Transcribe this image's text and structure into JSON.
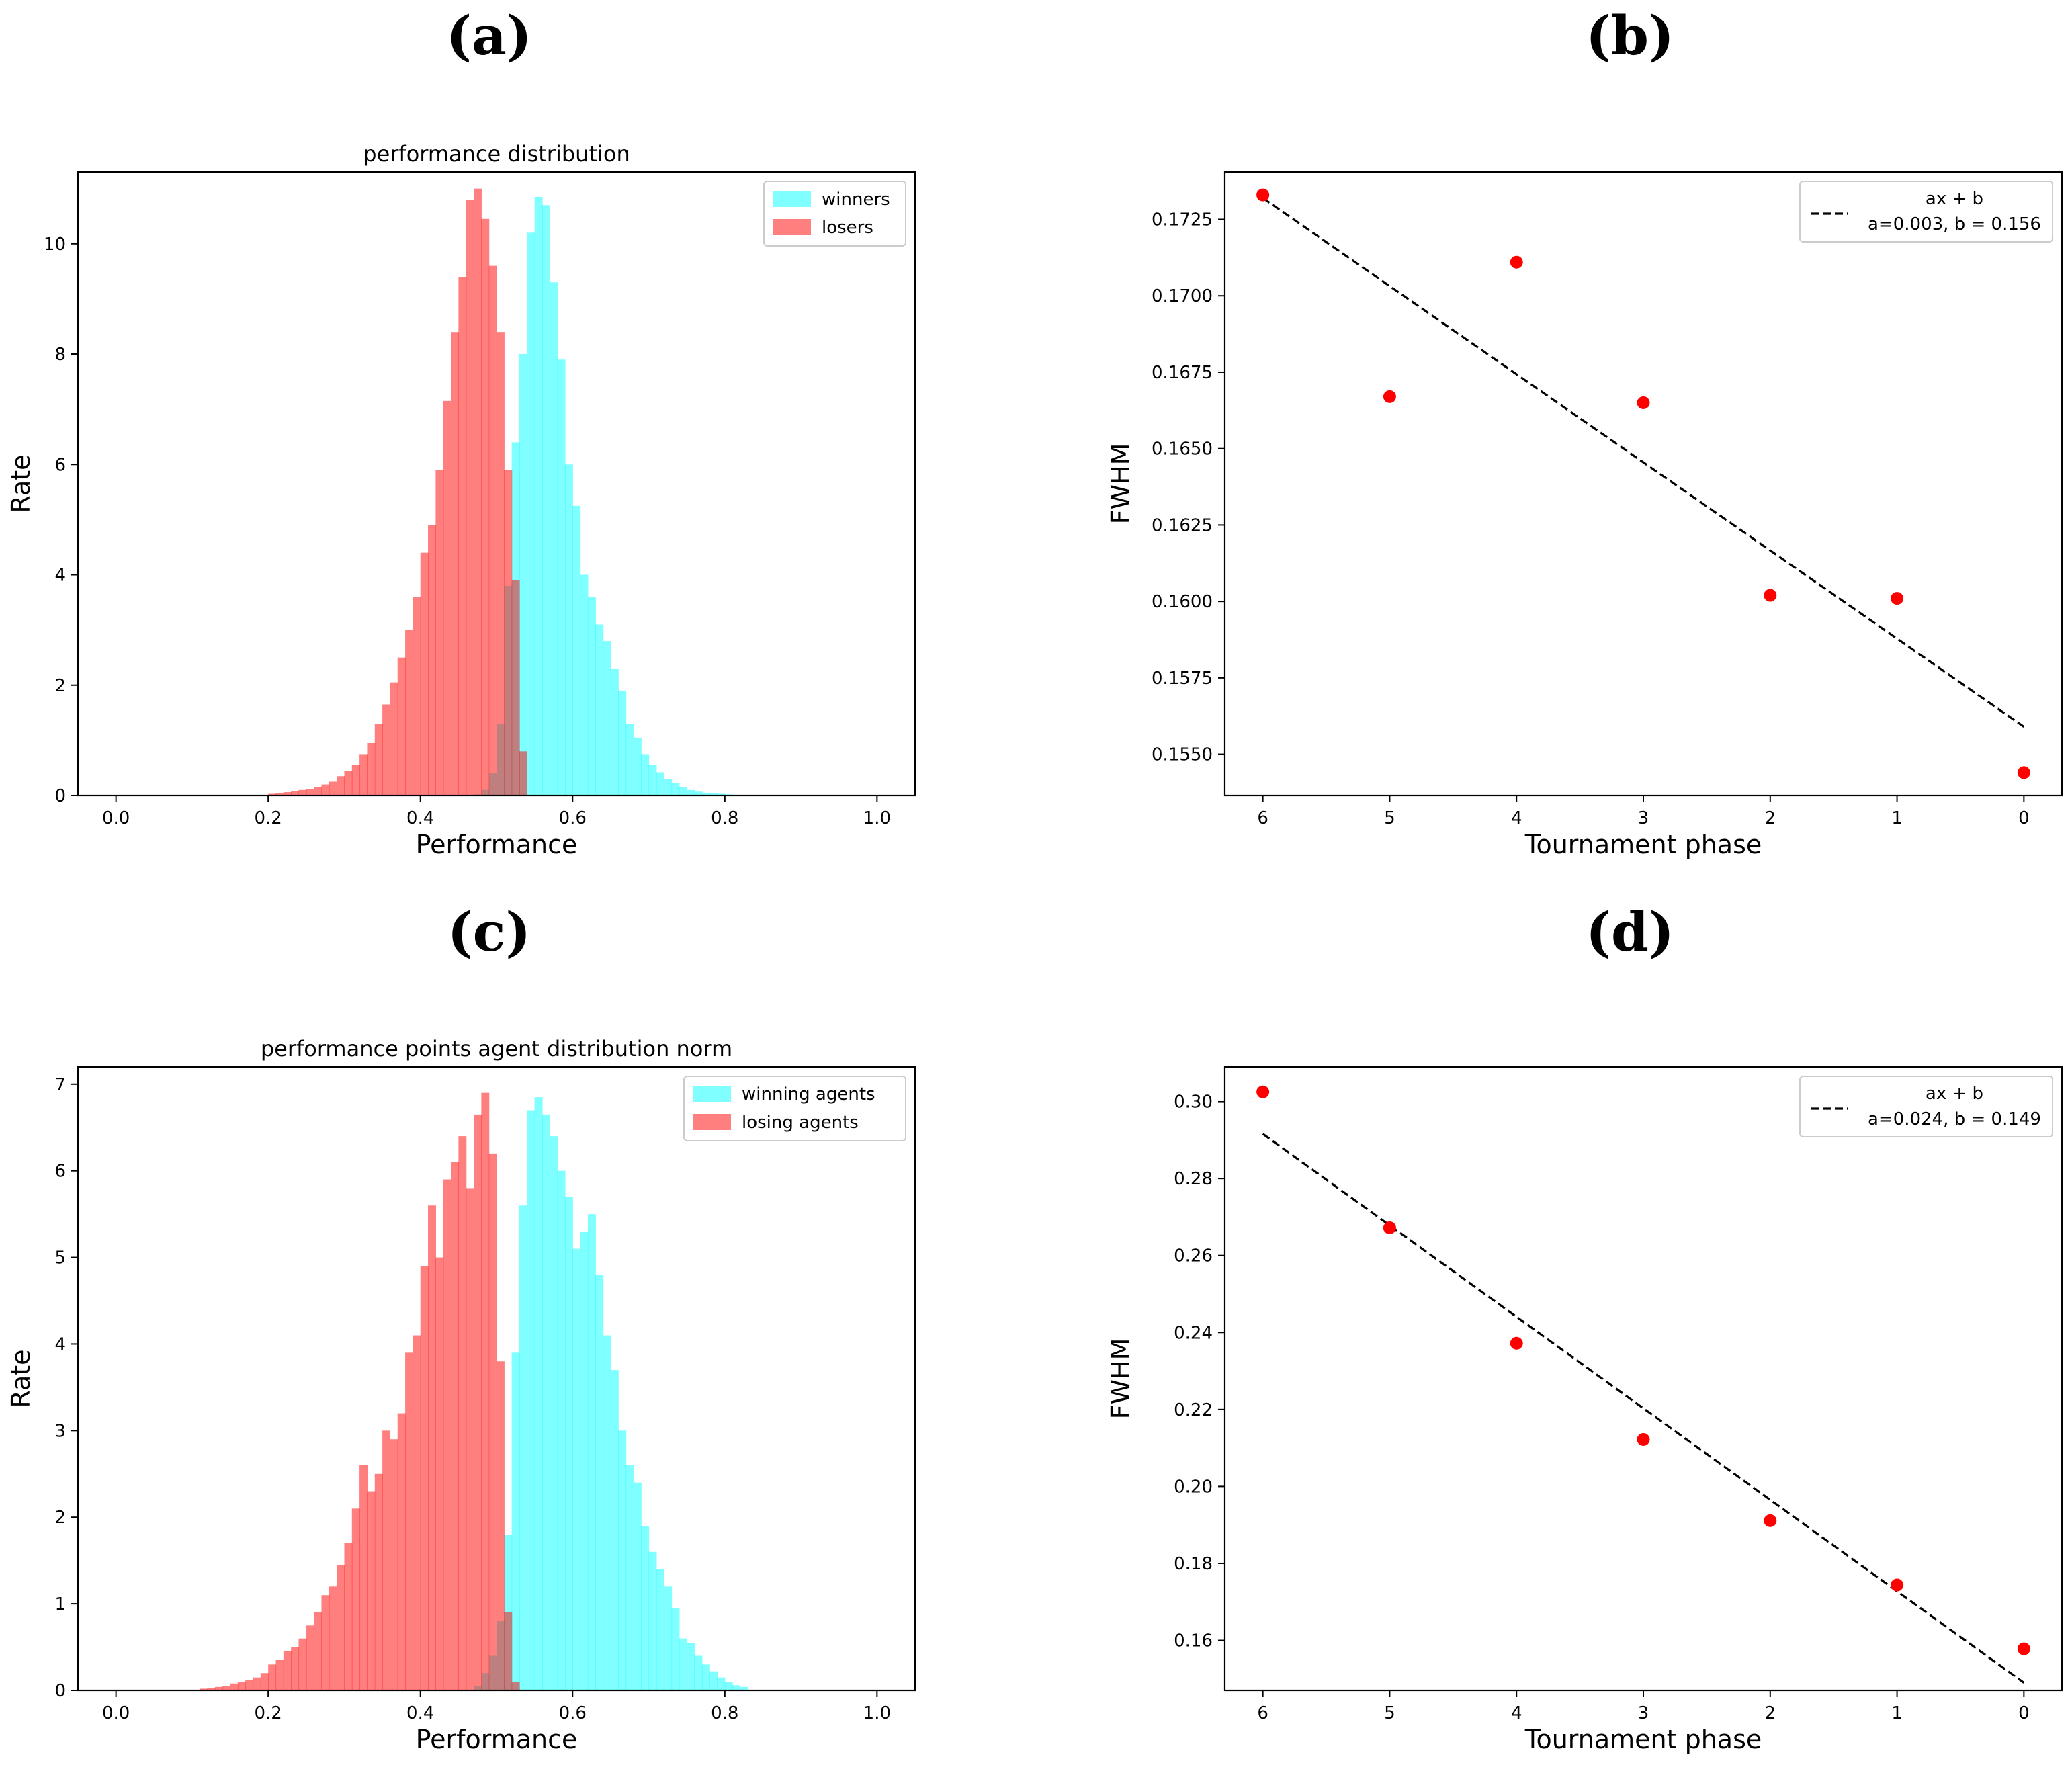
{
  "panel_labels": [
    "(a)",
    "(b)",
    "(c)",
    "(d)"
  ],
  "chart_data": [
    {
      "id": "a",
      "type": "bar",
      "title": "performance distribution",
      "xlabel": "Performance",
      "ylabel": "Rate",
      "xlim": [
        -0.05,
        1.05
      ],
      "ylim": [
        0,
        11.3
      ],
      "xticks": [
        0.0,
        0.2,
        0.4,
        0.6,
        0.8,
        1.0
      ],
      "xtick_labels": [
        "0.0",
        "0.2",
        "0.4",
        "0.6",
        "0.8",
        "1.0"
      ],
      "yticks": [
        0,
        2,
        4,
        6,
        8,
        10
      ],
      "ytick_labels": [
        "0",
        "2",
        "4",
        "6",
        "8",
        "10"
      ],
      "legend_position": "top-right",
      "bin_width": 0.01,
      "series": [
        {
          "name": "winners",
          "color": "#00ffff",
          "alpha": 0.5,
          "bin_start": 0.47,
          "values": [
            0.02,
            0.1,
            0.4,
            1.3,
            3.8,
            6.4,
            8.0,
            10.2,
            10.85,
            10.7,
            9.3,
            7.9,
            6.0,
            5.25,
            4.0,
            3.6,
            3.1,
            2.8,
            2.3,
            1.9,
            1.3,
            1.05,
            0.75,
            0.55,
            0.42,
            0.3,
            0.22,
            0.15,
            0.1,
            0.07,
            0.05,
            0.04,
            0.03,
            0.02
          ]
        },
        {
          "name": "losers",
          "color": "#ff0000",
          "alpha": 0.5,
          "bin_start": 0.2,
          "values": [
            0.03,
            0.04,
            0.06,
            0.08,
            0.1,
            0.12,
            0.15,
            0.2,
            0.25,
            0.35,
            0.45,
            0.55,
            0.75,
            0.95,
            1.3,
            1.65,
            2.05,
            2.5,
            3.0,
            3.6,
            4.4,
            4.9,
            5.9,
            7.15,
            8.4,
            9.4,
            10.8,
            11.0,
            10.45,
            9.6,
            8.4,
            5.9,
            3.9,
            0.8
          ]
        }
      ]
    },
    {
      "id": "b",
      "type": "scatter",
      "xlabel": "Tournament phase",
      "ylabel": "FWHM",
      "xlim": [
        6.3,
        -0.3
      ],
      "ylim": [
        0.15365,
        0.17405
      ],
      "xticks": [
        6,
        5,
        4,
        3,
        2,
        1,
        0
      ],
      "xtick_labels": [
        "6",
        "5",
        "4",
        "3",
        "2",
        "1",
        "0"
      ],
      "yticks": [
        0.155,
        0.1575,
        0.16,
        0.1625,
        0.165,
        0.1675,
        0.17,
        0.1725
      ],
      "ytick_labels": [
        "0.1550",
        "0.1575",
        "0.1600",
        "0.1625",
        "0.1650",
        "0.1675",
        "0.1700",
        "0.1725"
      ],
      "legend_position": "top-right",
      "points": {
        "x": [
          6,
          5,
          4,
          3,
          2,
          1,
          0
        ],
        "y": [
          0.1733,
          0.1667,
          0.1711,
          0.1665,
          0.1602,
          0.1601,
          0.1544
        ],
        "color": "#ff0000"
      },
      "fit": {
        "label": "ax + b",
        "params_label": "a=0.003, b = 0.156",
        "x": [
          6,
          0
        ],
        "y": [
          0.1732,
          0.1559
        ],
        "color": "#000000",
        "dash": "dashed"
      }
    },
    {
      "id": "c",
      "type": "bar",
      "title": "performance points agent distribution norm",
      "xlabel": "Performance",
      "ylabel": "Rate",
      "xlim": [
        -0.05,
        1.05
      ],
      "ylim": [
        0,
        7.2
      ],
      "xticks": [
        0.0,
        0.2,
        0.4,
        0.6,
        0.8,
        1.0
      ],
      "xtick_labels": [
        "0.0",
        "0.2",
        "0.4",
        "0.6",
        "0.8",
        "1.0"
      ],
      "yticks": [
        0,
        1,
        2,
        3,
        4,
        5,
        6,
        7
      ],
      "ytick_labels": [
        "0",
        "1",
        "2",
        "3",
        "4",
        "5",
        "6",
        "7"
      ],
      "legend_position": "top-right",
      "bin_width": 0.01,
      "series": [
        {
          "name": "winning agents",
          "color": "#00ffff",
          "alpha": 0.5,
          "bin_start": 0.47,
          "values": [
            0.05,
            0.2,
            0.4,
            0.8,
            1.8,
            3.9,
            5.6,
            6.7,
            6.85,
            6.65,
            6.4,
            6.0,
            5.7,
            5.1,
            5.3,
            5.5,
            4.8,
            4.1,
            3.7,
            3.0,
            2.6,
            2.4,
            1.9,
            1.6,
            1.4,
            1.2,
            0.95,
            0.6,
            0.55,
            0.4,
            0.3,
            0.22,
            0.15,
            0.1,
            0.06,
            0.04
          ]
        },
        {
          "name": "losing agents",
          "color": "#ff0000",
          "alpha": 0.5,
          "bin_start": 0.11,
          "values": [
            0.02,
            0.03,
            0.04,
            0.05,
            0.08,
            0.1,
            0.12,
            0.15,
            0.2,
            0.3,
            0.35,
            0.45,
            0.5,
            0.6,
            0.75,
            0.9,
            1.1,
            1.2,
            1.45,
            1.7,
            2.1,
            2.6,
            2.3,
            2.5,
            3.0,
            2.9,
            3.2,
            3.9,
            4.1,
            4.9,
            5.6,
            5.0,
            5.9,
            6.1,
            6.4,
            5.8,
            6.65,
            6.9,
            6.2,
            3.8,
            0.9,
            0.1
          ]
        }
      ]
    },
    {
      "id": "d",
      "type": "scatter",
      "xlabel": "Tournament phase",
      "ylabel": "FWHM",
      "xlim": [
        6.3,
        -0.3
      ],
      "ylim": [
        0.147,
        0.309
      ],
      "xticks": [
        6,
        5,
        4,
        3,
        2,
        1,
        0
      ],
      "xtick_labels": [
        "6",
        "5",
        "4",
        "3",
        "2",
        "1",
        "0"
      ],
      "yticks": [
        0.16,
        0.18,
        0.2,
        0.22,
        0.24,
        0.26,
        0.28,
        0.3
      ],
      "ytick_labels": [
        "0.16",
        "0.18",
        "0.20",
        "0.22",
        "0.24",
        "0.26",
        "0.28",
        "0.30"
      ],
      "legend_position": "top-right",
      "points": {
        "x": [
          6,
          5,
          4,
          3,
          2,
          1,
          0
        ],
        "y": [
          0.3025,
          0.2672,
          0.2372,
          0.2122,
          0.1911,
          0.1744,
          0.1578
        ],
        "color": "#ff0000"
      },
      "fit": {
        "label": "ax + b",
        "params_label": "a=0.024, b = 0.149",
        "x": [
          6,
          0
        ],
        "y": [
          0.2916,
          0.149
        ],
        "color": "#000000",
        "dash": "dashed"
      }
    }
  ]
}
